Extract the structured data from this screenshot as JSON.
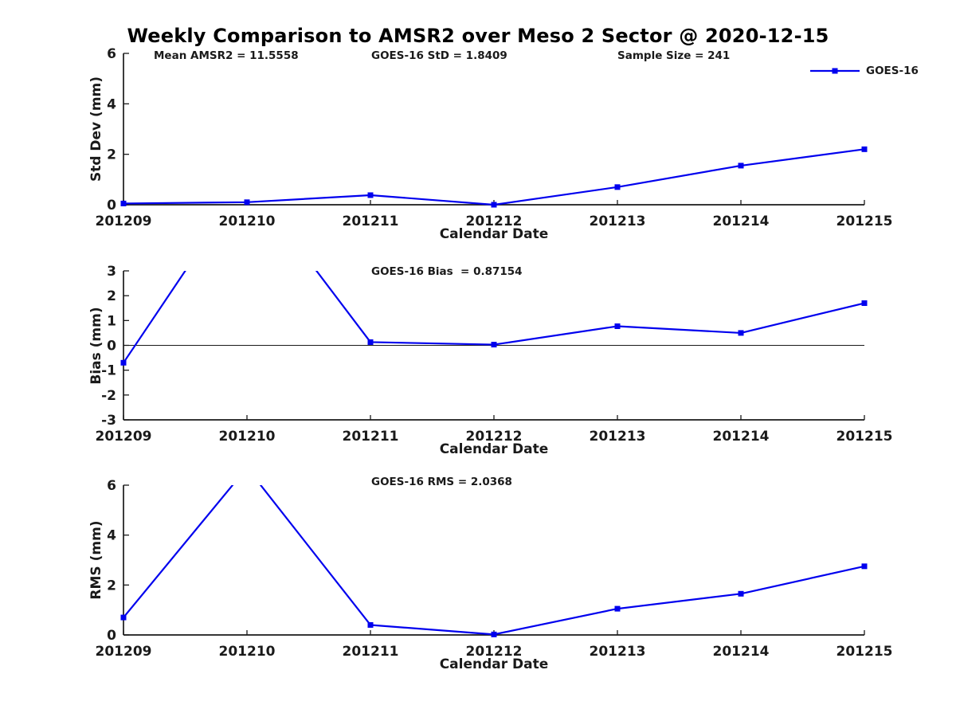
{
  "figure": {
    "title": "Weekly Comparison to AMSR2 over Meso 2 Sector @ 2020-12-15",
    "legend": {
      "label": "GOES-16"
    },
    "colors": {
      "line": "#0000EE",
      "axis": "#1a1a1a",
      "background": "#ffffff"
    }
  },
  "chart_data": [
    {
      "type": "line",
      "subplot": "std-dev",
      "annotations": [
        {
          "text": "Mean AMSR2 = 11.5558"
        },
        {
          "text": "GOES-16 StD = 1.8409"
        },
        {
          "text": "Sample Size = 241"
        }
      ],
      "xlabel": "Calendar Date",
      "ylabel": "Std Dev (mm)",
      "categories": [
        "201209",
        "201210",
        "201211",
        "201212",
        "201213",
        "201214",
        "201215"
      ],
      "series": [
        {
          "name": "GOES-16",
          "values": [
            0.05,
            0.1,
            0.38,
            0.0,
            0.7,
            1.55,
            2.2
          ]
        }
      ],
      "ylim": [
        0,
        6
      ],
      "yticks": [
        0,
        2,
        4,
        6
      ],
      "zero_line": false,
      "legend_position": "top-right",
      "grid": false
    },
    {
      "type": "line",
      "subplot": "bias",
      "annotations": [
        {
          "text": "GOES-16 Bias  = 0.87154"
        }
      ],
      "xlabel": "Calendar Date",
      "ylabel": "Bias (mm)",
      "categories": [
        "201209",
        "201210",
        "201211",
        "201212",
        "201213",
        "201214",
        "201215"
      ],
      "series": [
        {
          "name": "GOES-16",
          "values": [
            -0.7,
            6.7,
            0.13,
            0.03,
            0.77,
            0.5,
            1.7
          ]
        }
      ],
      "ylim": [
        -3,
        3
      ],
      "yticks": [
        -3,
        -2,
        -1,
        0,
        1,
        2,
        3
      ],
      "zero_line": true,
      "grid": false
    },
    {
      "type": "line",
      "subplot": "rms",
      "annotations": [
        {
          "text": "GOES-16 RMS = 2.0368"
        }
      ],
      "xlabel": "Calendar Date",
      "ylabel": "RMS (mm)",
      "categories": [
        "201209",
        "201210",
        "201211",
        "201212",
        "201213",
        "201214",
        "201215"
      ],
      "series": [
        {
          "name": "GOES-16",
          "values": [
            0.7,
            6.7,
            0.4,
            0.02,
            1.05,
            1.65,
            2.75
          ]
        }
      ],
      "ylim": [
        0,
        6
      ],
      "yticks": [
        0,
        2,
        4,
        6
      ],
      "zero_line": false,
      "grid": false
    }
  ]
}
